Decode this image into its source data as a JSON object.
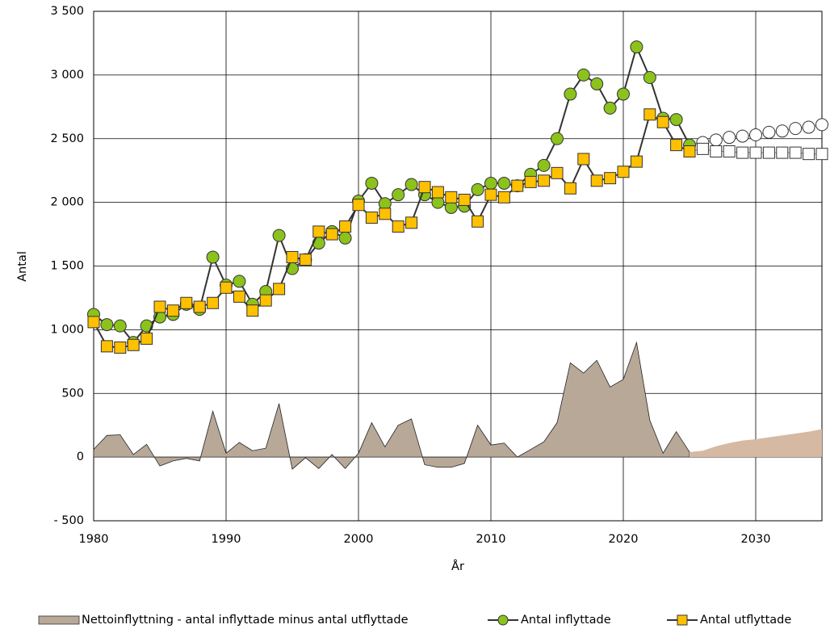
{
  "chart_data": {
    "type": "line",
    "x_label": "År",
    "y_label": "Antal",
    "forecast_from": 2026,
    "x": [
      1980,
      1981,
      1982,
      1983,
      1984,
      1985,
      1986,
      1987,
      1988,
      1989,
      1990,
      1991,
      1992,
      1993,
      1994,
      1995,
      1996,
      1997,
      1998,
      1999,
      2000,
      2001,
      2002,
      2003,
      2004,
      2005,
      2006,
      2007,
      2008,
      2009,
      2010,
      2011,
      2012,
      2013,
      2014,
      2015,
      2016,
      2017,
      2018,
      2019,
      2020,
      2021,
      2022,
      2023,
      2024,
      2025,
      2026,
      2027,
      2028,
      2029,
      2030,
      2031,
      2032,
      2033,
      2034,
      2035
    ],
    "series": [
      {
        "name": "Nettoinflyttning - antal inflyttade minus antal utflyttade",
        "kind": "area",
        "color": "#b8a898",
        "forecast_color": "#d6b9a2",
        "values": [
          60,
          170,
          175,
          20,
          100,
          -70,
          -30,
          -10,
          -30,
          360,
          30,
          115,
          50,
          70,
          420,
          -95,
          -5,
          -90,
          20,
          -90,
          30,
          270,
          80,
          250,
          300,
          -60,
          -80,
          -80,
          -50,
          250,
          95,
          110,
          0,
          60,
          120,
          270,
          740,
          660,
          760,
          550,
          610,
          900,
          290,
          30,
          200,
          40,
          50,
          85,
          110,
          130,
          140,
          155,
          170,
          185,
          200,
          220
        ]
      },
      {
        "name": "Antal inflyttade",
        "kind": "line",
        "marker": "circle",
        "color": "#8cc21c",
        "forecast_color": "#ffffff",
        "values": [
          1120,
          1040,
          1030,
          900,
          1030,
          1100,
          1120,
          1200,
          1160,
          1570,
          1350,
          1380,
          1200,
          1300,
          1740,
          1480,
          1550,
          1680,
          1770,
          1720,
          2010,
          2150,
          1990,
          2060,
          2140,
          2060,
          2000,
          1960,
          1970,
          2100,
          2150,
          2150,
          2130,
          2220,
          2290,
          2500,
          2850,
          3000,
          2930,
          2740,
          2850,
          3220,
          2980,
          2660,
          2650,
          2450,
          2470,
          2490,
          2510,
          2520,
          2530,
          2550,
          2560,
          2580,
          2590,
          2610
        ]
      },
      {
        "name": "Antal utflyttade",
        "kind": "line",
        "marker": "square",
        "color": "#ffc000",
        "forecast_color": "#ffffff",
        "values": [
          1060,
          870,
          860,
          880,
          930,
          1180,
          1150,
          1210,
          1180,
          1210,
          1330,
          1260,
          1150,
          1230,
          1320,
          1570,
          1550,
          1770,
          1750,
          1810,
          1980,
          1880,
          1910,
          1810,
          1840,
          2120,
          2080,
          2040,
          2020,
          1850,
          2060,
          2040,
          2130,
          2160,
          2170,
          2230,
          2110,
          2340,
          2170,
          2190,
          2240,
          2320,
          2690,
          2630,
          2450,
          2400,
          2420,
          2400,
          2400,
          2390,
          2390,
          2390,
          2390,
          2390,
          2380,
          2380
        ]
      }
    ],
    "xlim": [
      1980,
      2035
    ],
    "xticks": [
      1980,
      1990,
      2000,
      2010,
      2020,
      2030
    ],
    "ylim": [
      -500,
      3500
    ],
    "yticks": [
      {
        "value": -500,
        "label": "- 500"
      },
      0,
      500,
      {
        "value": 1000,
        "label": "1 000"
      },
      {
        "value": 1500,
        "label": "1 500"
      },
      {
        "value": 2000,
        "label": "2 000"
      },
      {
        "value": 2500,
        "label": "2 500"
      },
      {
        "value": 3000,
        "label": "3 000"
      },
      {
        "value": 3500,
        "label": "3 500"
      }
    ],
    "grid": true,
    "legend": "bottom"
  }
}
